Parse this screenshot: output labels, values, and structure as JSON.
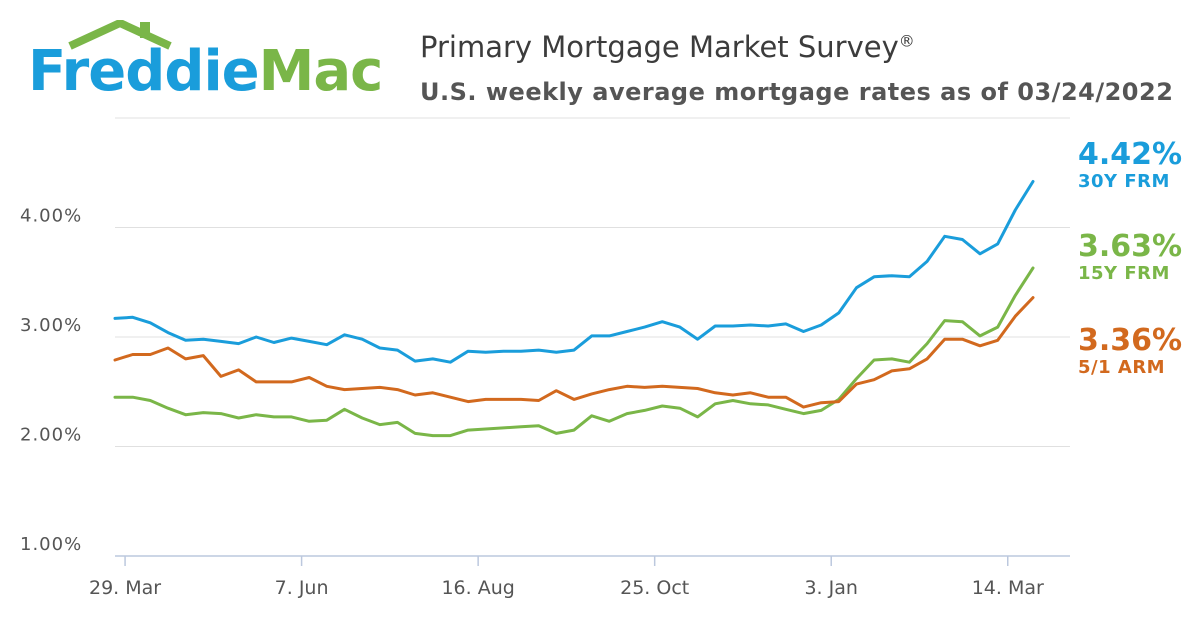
{
  "logo": {
    "text_left": "Freddie",
    "text_right": "Mac"
  },
  "header": {
    "title": "Primary Mortgage Market Survey",
    "title_mark": "®",
    "subtitle": "U.S. weekly average mortgage rates as of 03/24/2022"
  },
  "colors": {
    "frm30": "#1a9ddb",
    "frm15": "#7ab648",
    "arm51": "#d2691e",
    "grid": "#e0e0e0",
    "axis": "#bcc8de",
    "text": "#555555"
  },
  "callouts": [
    {
      "value": "4.42%",
      "label": "30Y FRM",
      "color": "#1a9ddb"
    },
    {
      "value": "3.63%",
      "label": "15Y FRM",
      "color": "#7ab648"
    },
    {
      "value": "3.36%",
      "label": "5/1 ARM",
      "color": "#d2691e"
    }
  ],
  "chart_data": {
    "type": "line",
    "title": "Primary Mortgage Market Survey",
    "subtitle": "U.S. weekly average mortgage rates as of 03/24/2022",
    "xlabel": "",
    "ylabel": "",
    "x_start": "2021-03-25",
    "x_tick_labels": [
      "29. Mar",
      "7. Jun",
      "16. Aug",
      "25. Oct",
      "3. Jan",
      "14. Mar"
    ],
    "y_tick_labels": [
      "1.00%",
      "2.00%",
      "3.00%",
      "4.00%"
    ],
    "y_ticks": [
      1.0,
      2.0,
      3.0,
      4.0
    ],
    "ylim": [
      1.0,
      5.0
    ],
    "grid": true,
    "legend": "none",
    "series": [
      {
        "name": "30Y FRM",
        "color": "#1a9ddb",
        "values": [
          3.17,
          3.18,
          3.13,
          3.04,
          2.97,
          2.98,
          2.96,
          2.94,
          3.0,
          2.95,
          2.99,
          2.96,
          2.93,
          3.02,
          2.98,
          2.9,
          2.88,
          2.78,
          2.8,
          2.77,
          2.87,
          2.86,
          2.87,
          2.87,
          2.88,
          2.86,
          2.88,
          3.01,
          3.01,
          3.05,
          3.09,
          3.14,
          3.09,
          2.98,
          3.1,
          3.1,
          3.11,
          3.1,
          3.12,
          3.05,
          3.11,
          3.22,
          3.45,
          3.55,
          3.56,
          3.55,
          3.69,
          3.92,
          3.89,
          3.76,
          3.85,
          4.16,
          4.42
        ]
      },
      {
        "name": "15Y FRM",
        "color": "#7ab648",
        "values": [
          2.45,
          2.45,
          2.42,
          2.35,
          2.29,
          2.31,
          2.3,
          2.26,
          2.29,
          2.27,
          2.27,
          2.23,
          2.24,
          2.34,
          2.26,
          2.2,
          2.22,
          2.12,
          2.1,
          2.1,
          2.15,
          2.16,
          2.17,
          2.18,
          2.19,
          2.12,
          2.15,
          2.28,
          2.23,
          2.3,
          2.33,
          2.37,
          2.35,
          2.27,
          2.39,
          2.42,
          2.39,
          2.38,
          2.34,
          2.3,
          2.33,
          2.43,
          2.62,
          2.79,
          2.8,
          2.77,
          2.94,
          3.15,
          3.14,
          3.01,
          3.09,
          3.38,
          3.63
        ]
      },
      {
        "name": "5/1 ARM",
        "color": "#d2691e",
        "values": [
          2.79,
          2.84,
          2.84,
          2.9,
          2.8,
          2.83,
          2.64,
          2.7,
          2.59,
          2.59,
          2.59,
          2.63,
          2.55,
          2.52,
          2.53,
          2.54,
          2.52,
          2.47,
          2.49,
          2.45,
          2.41,
          2.43,
          2.43,
          2.43,
          2.42,
          2.51,
          2.43,
          2.48,
          2.52,
          2.55,
          2.54,
          2.55,
          2.54,
          2.53,
          2.49,
          2.47,
          2.49,
          2.45,
          2.45,
          2.36,
          2.4,
          2.41,
          2.57,
          2.61,
          2.69,
          2.71,
          2.8,
          2.98,
          2.98,
          2.92,
          2.97,
          3.19,
          3.36
        ]
      }
    ]
  }
}
